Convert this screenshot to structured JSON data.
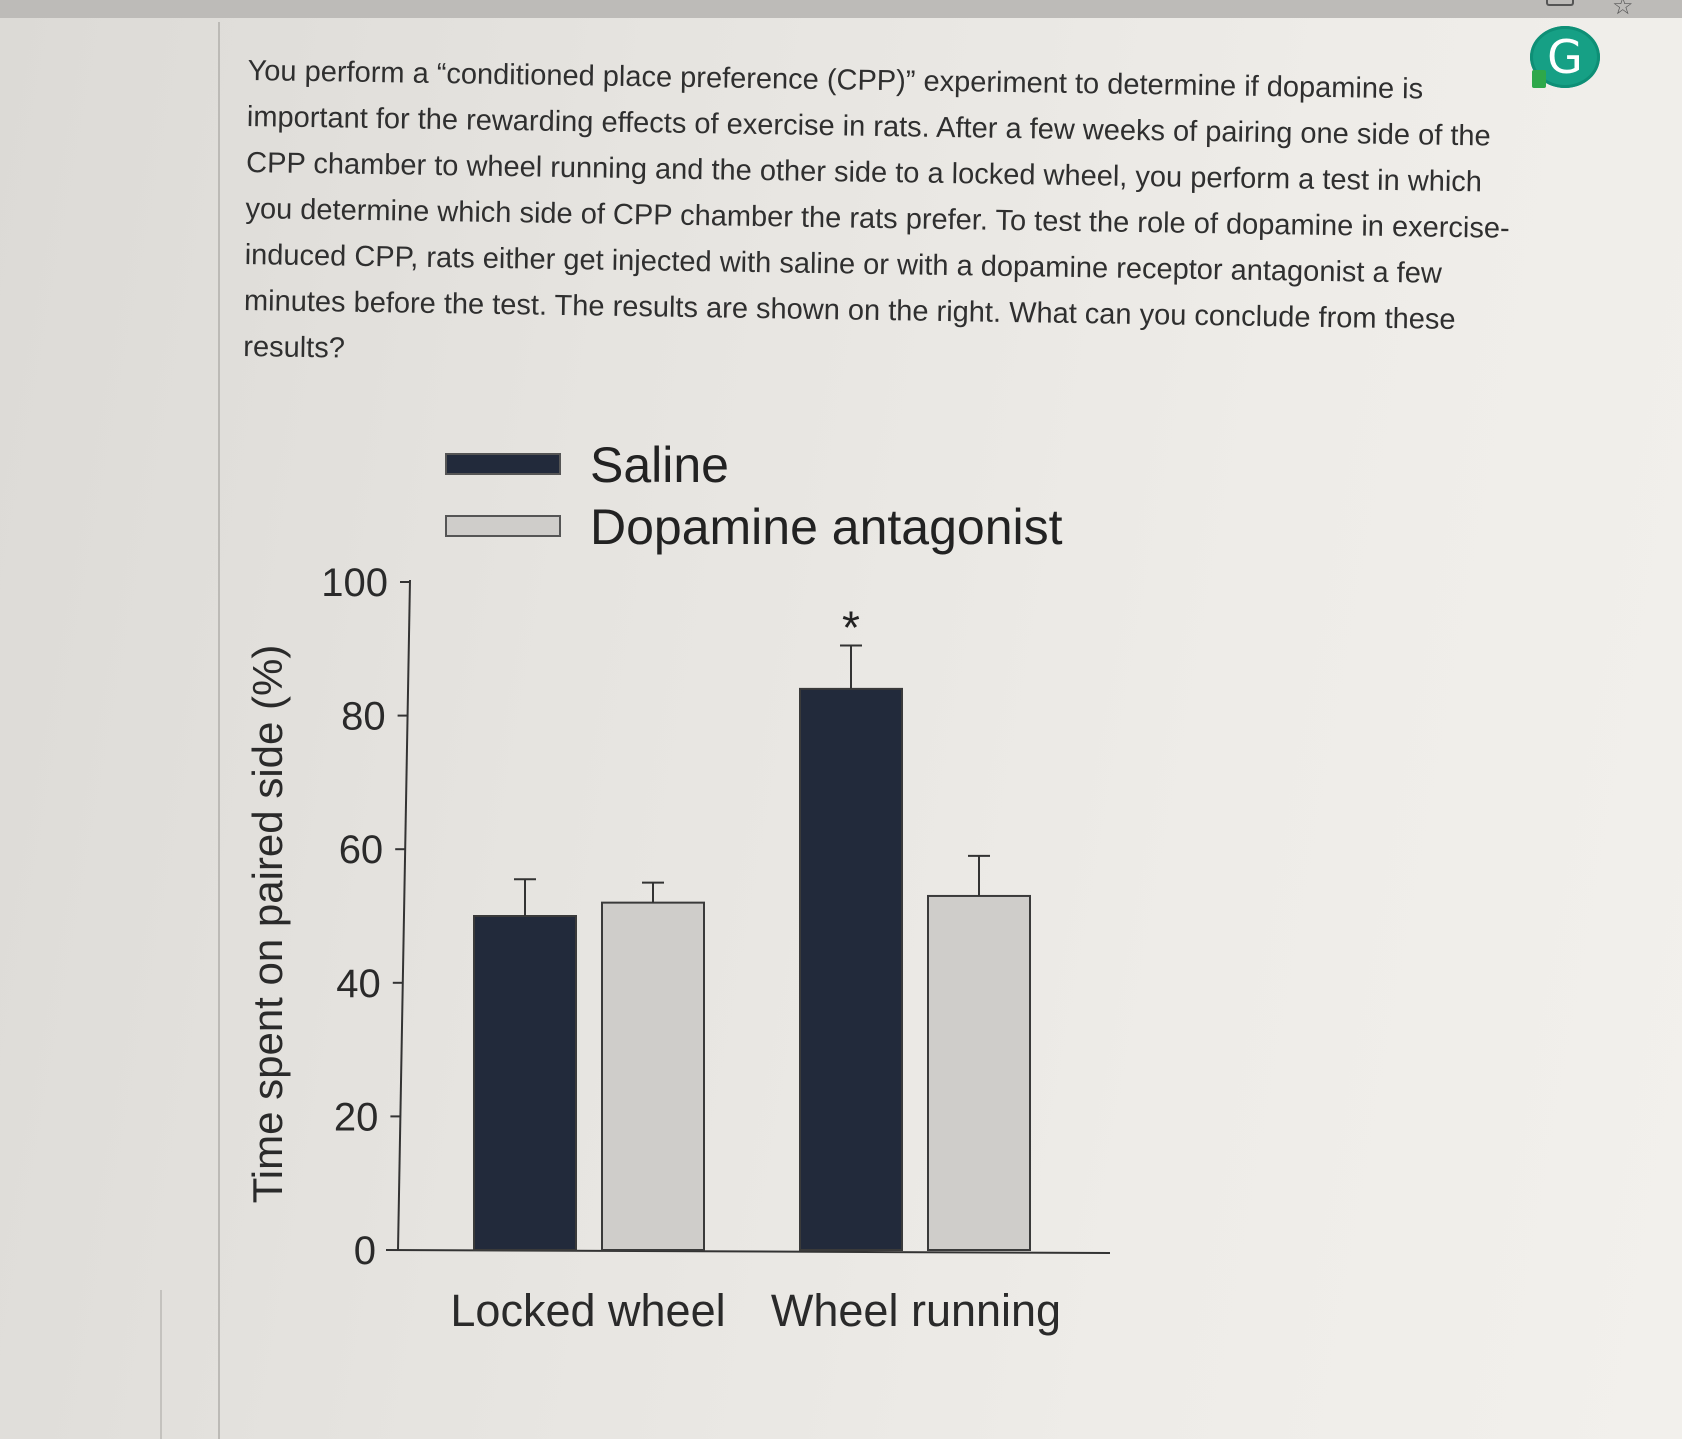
{
  "question": {
    "text": "You perform a “conditioned place preference (CPP)” experiment to determine if dopamine is important for the rewarding effects of exercise in rats. After a few weeks of pairing one side of the CPP chamber to wheel running and the other side to a locked wheel, you perform a test in which you determine which side of CPP chamber the rats prefer. To test the role of dopamine in exercise-induced CPP, rats either get injected with saline or with a dopamine receptor antagonist a few minutes before the test. The results are shown on the right. What can you conclude from these results?"
  },
  "grammarly_badge": {
    "letter": "G",
    "color": "#16a085"
  },
  "corner_star": "☆",
  "chart_data": {
    "type": "bar",
    "categories": [
      "Locked wheel",
      "Wheel running"
    ],
    "series": [
      {
        "name": "Saline",
        "values": [
          50,
          84
        ],
        "errors": [
          5.5,
          6.5
        ],
        "color": "#222a3b"
      },
      {
        "name": "Dopamine antagonist",
        "values": [
          52,
          53
        ],
        "errors": [
          3,
          6
        ],
        "color": "#cfcdca"
      }
    ],
    "ylabel": "Time spent on paired side (%)",
    "xlabel": "",
    "ylim": [
      0,
      100
    ],
    "yticks": [
      0,
      20,
      40,
      60,
      80,
      100
    ],
    "yticklabels": [
      "0",
      "20",
      "40",
      "60",
      "80",
      "100"
    ],
    "annotations": [
      {
        "text": "*",
        "category": "Wheel running",
        "series": "Saline"
      }
    ],
    "legend_position": "top",
    "grid": false
  }
}
